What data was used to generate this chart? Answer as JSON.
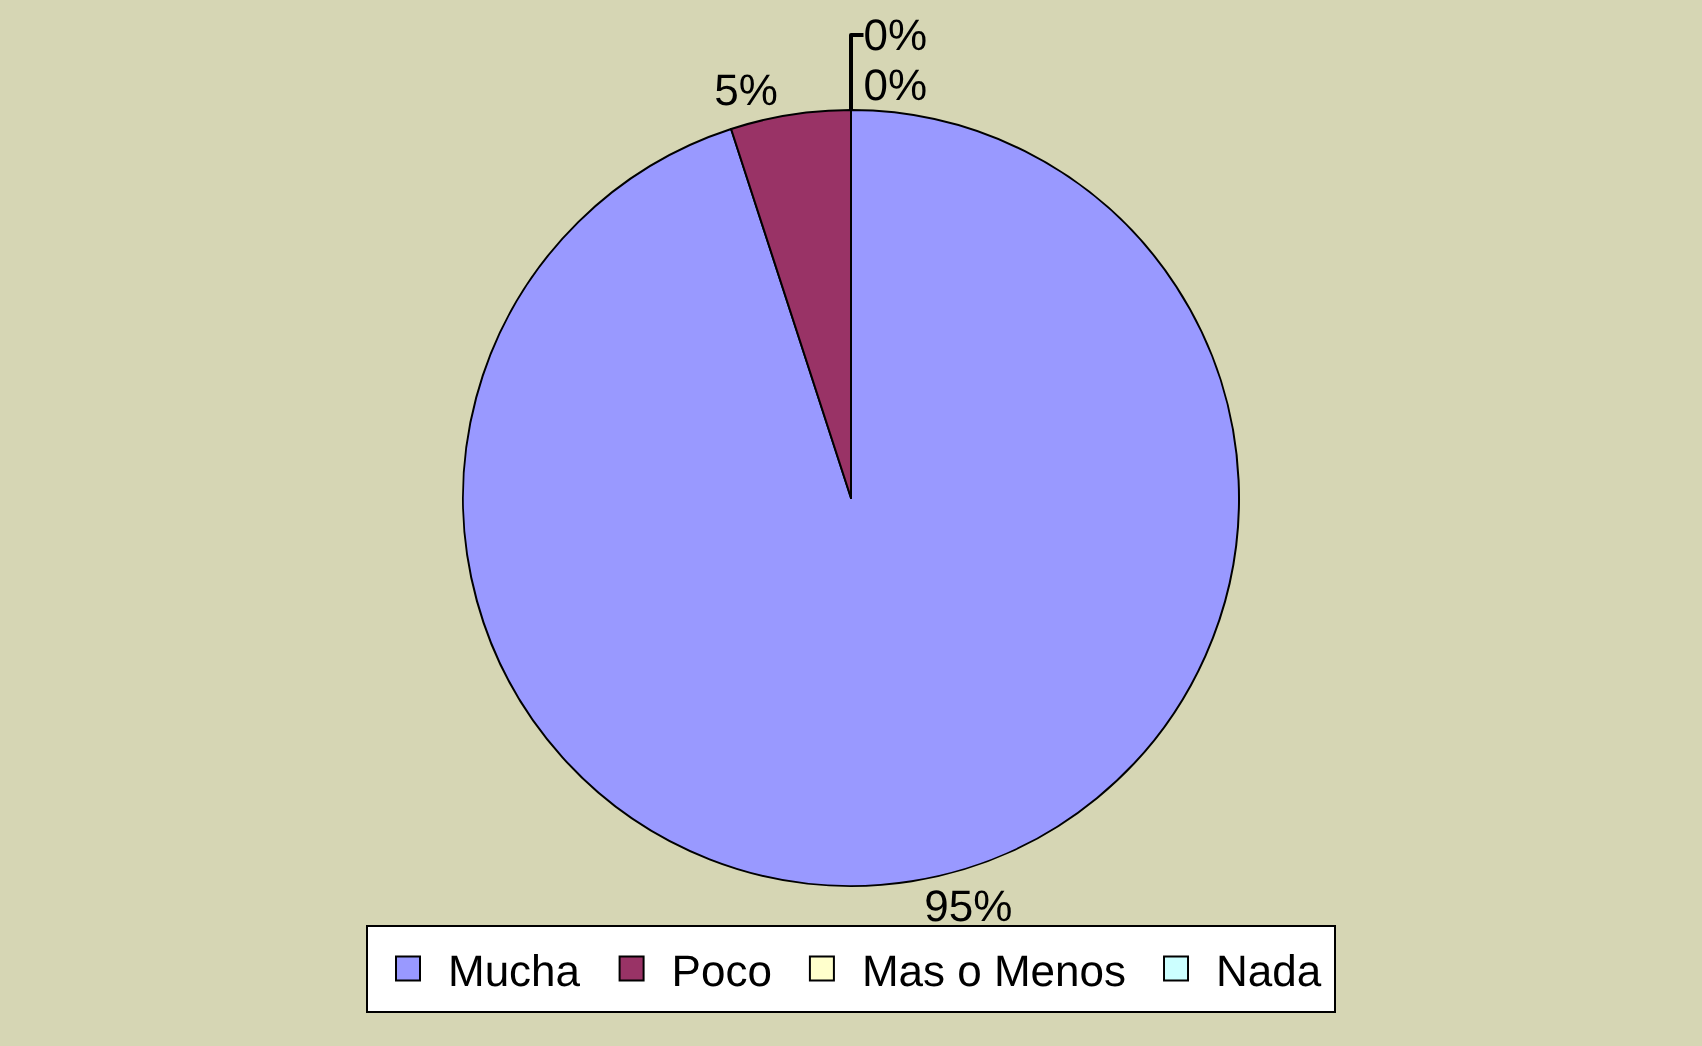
{
  "chart_data": {
    "type": "pie",
    "categories": [
      "Mucha",
      "Poco",
      "Mas o Menos",
      "Nada"
    ],
    "values": [
      95,
      5,
      0,
      0
    ],
    "colors": [
      "#9999ff",
      "#993366",
      "#ffffcc",
      "#ccffff"
    ],
    "value_labels": [
      "95%",
      "5%",
      "0%",
      "0%"
    ],
    "legend": "bottom"
  }
}
